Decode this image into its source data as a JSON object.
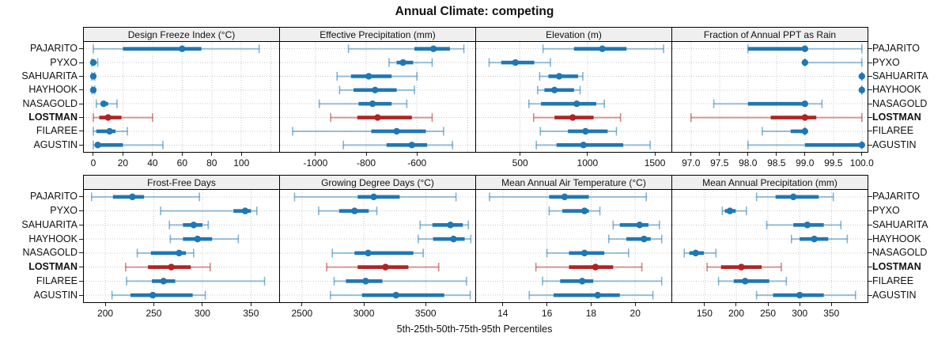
{
  "title": "Annual Climate: competing",
  "xlabel": "5th-25th-50th-75th-95th Percentiles",
  "percentile_levels": [
    5,
    25,
    50,
    75,
    95
  ],
  "highlight_station": "LOSTMAN",
  "colors": {
    "series": "#1F77B4",
    "highlight": "#B22222",
    "grid": "#C9C9C9",
    "strip_bg": "#EFEFEF",
    "panel_border": "#000000",
    "text": "#111111"
  },
  "stations": [
    {
      "name": "PAJARITO",
      "bold": false
    },
    {
      "name": "PYXO",
      "bold": false
    },
    {
      "name": "SAHUARITA",
      "bold": false
    },
    {
      "name": "HAYHOOK",
      "bold": false
    },
    {
      "name": "NASAGOLD",
      "bold": false
    },
    {
      "name": "LOSTMAN",
      "bold": true
    },
    {
      "name": "FILAREE",
      "bold": false
    },
    {
      "name": "AGUSTIN",
      "bold": false
    }
  ],
  "chart_data": {
    "type": "dotplot",
    "note": "Each row shows 5th-25th-50th-75th-95th percentile whisker/band/median-dot per station",
    "rows": [
      {
        "panels": [
          {
            "title": "Design Freeze Index (°C)",
            "xlim": [
              -6.4,
              125.5
            ],
            "ticks": [
              0,
              20,
              40,
              60,
              80,
              100
            ],
            "tick_labels": [
              "0",
              "20",
              "40",
              "60",
              "80",
              "100"
            ],
            "unlabeled_gridlines": [
              120
            ],
            "values": {
              "PAJARITO": [
                0,
                20,
                60,
                73,
                112
              ],
              "PYXO": [
                -1,
                0,
                0,
                1,
                3
              ],
              "SAHUARITA": [
                -1,
                0,
                0,
                0,
                1
              ],
              "HAYHOOK": [
                -1,
                0,
                0,
                0,
                1
              ],
              "NASAGOLD": [
                2,
                5,
                7,
                10,
                16
              ],
              "LOSTMAN": [
                0,
                4,
                10,
                19,
                40
              ],
              "FILAREE": [
                0,
                2,
                11,
                15,
                23
              ],
              "AGUSTIN": [
                0,
                2,
                3,
                20,
                47
              ]
            }
          },
          {
            "title": "Effective Precipitation (mm)",
            "xlim": [
              -1140,
              -370
            ],
            "ticks": [
              -1000,
              -800,
              -600
            ],
            "tick_labels": [
              "-1000",
              "-800",
              "-600"
            ],
            "unlabeled_gridlines": [
              -400
            ],
            "values": {
              "PAJARITO": [
                -870,
                -610,
                -535,
                -470,
                -415
              ],
              "PYXO": [
                -710,
                -680,
                -655,
                -615,
                -540
              ],
              "SAHUARITA": [
                -915,
                -860,
                -790,
                -700,
                -600
              ],
              "HAYHOOK": [
                -905,
                -850,
                -765,
                -680,
                -610
              ],
              "NASAGOLD": [
                -985,
                -830,
                -775,
                -700,
                -640
              ],
              "LOSTMAN": [
                -940,
                -835,
                -755,
                -620,
                -540
              ],
              "FILAREE": [
                -1090,
                -780,
                -680,
                -565,
                -495
              ],
              "AGUSTIN": [
                -890,
                -720,
                -620,
                -560,
                -460
              ]
            }
          },
          {
            "title": "Elevation (m)",
            "xlim": [
              173,
              1623
            ],
            "ticks": [
              500,
              1000,
              1500
            ],
            "tick_labels": [
              "500",
              "1000",
              "1500"
            ],
            "unlabeled_gridlines": [],
            "values": {
              "PAJARITO": [
                670,
                900,
                1110,
                1290,
                1565
              ],
              "PYXO": [
                270,
                360,
                465,
                605,
                725
              ],
              "SAHUARITA": [
                645,
                710,
                790,
                930,
                965
              ],
              "HAYHOOK": [
                630,
                680,
                755,
                900,
                945
              ],
              "NASAGOLD": [
                565,
                655,
                920,
                1065,
                1125
              ],
              "LOSTMAN": [
                600,
                755,
                890,
                1045,
                1245
              ],
              "FILAREE": [
                650,
                855,
                985,
                1150,
                1215
              ],
              "AGUSTIN": [
                620,
                770,
                970,
                1265,
                1465
              ]
            }
          },
          {
            "title": "Fraction of Annual PPT as Rain",
            "xlim": [
              96.67,
              100.1
            ],
            "ticks": [
              97.0,
              97.5,
              98.0,
              98.5,
              99.0,
              99.5,
              100.0
            ],
            "tick_labels": [
              "97.0",
              "97.5",
              "98.0",
              "98.5",
              "99.0",
              "99.5",
              "100.0"
            ],
            "unlabeled_gridlines": [],
            "values": {
              "PAJARITO": [
                98.0,
                98.0,
                99.0,
                99.0,
                100.0
              ],
              "PYXO": [
                99.0,
                99.0,
                99.0,
                99.0,
                100.0
              ],
              "SAHUARITA": [
                100.0,
                100.0,
                100.0,
                100.0,
                100.0
              ],
              "HAYHOOK": [
                100.0,
                100.0,
                100.0,
                100.0,
                100.0
              ],
              "NASAGOLD": [
                97.4,
                98.0,
                99.0,
                99.0,
                99.3
              ],
              "LOSTMAN": [
                97.0,
                98.4,
                99.0,
                99.2,
                100.0
              ],
              "FILAREE": [
                98.25,
                98.75,
                99.0,
                99.0,
                99.0
              ],
              "AGUSTIN": [
                98.0,
                99.0,
                100.0,
                100.0,
                100.0
              ]
            }
          }
        ]
      },
      {
        "panels": [
          {
            "title": "Frost-Free Days",
            "xlim": [
              178,
              379
            ],
            "ticks": [
              200,
              250,
              300,
              350
            ],
            "tick_labels": [
              "200",
              "250",
              "300",
              "350"
            ],
            "unlabeled_gridlines": [],
            "values": {
              "PAJARITO": [
                186,
                208,
                228,
                240,
                297
              ],
              "PYXO": [
                257,
                332,
                344,
                350,
                356
              ],
              "SAHUARITA": [
                266,
                280,
                291,
                300,
                306
              ],
              "HAYHOOK": [
                267,
                280,
                295,
                310,
                337
              ],
              "NASAGOLD": [
                233,
                247,
                276,
                283,
                291
              ],
              "LOSTMAN": [
                221,
                244,
                268,
                288,
                308
              ],
              "FILAREE": [
                222,
                248,
                260,
                272,
                364
              ],
              "AGUSTIN": [
                207,
                226,
                249,
                290,
                303
              ]
            }
          },
          {
            "title": "Growing Degree Days (°C)",
            "xlim": [
              2322,
              3901
            ],
            "ticks": [
              2500,
              3000,
              3500
            ],
            "tick_labels": [
              "2500",
              "3000",
              "3500"
            ],
            "unlabeled_gridlines": [],
            "values": {
              "PAJARITO": [
                2440,
                2950,
                3080,
                3290,
                3745
              ],
              "PYXO": [
                2635,
                2800,
                2925,
                3040,
                3105
              ],
              "SAHUARITA": [
                3455,
                3555,
                3700,
                3800,
                3845
              ],
              "HAYHOOK": [
                3440,
                3560,
                3725,
                3815,
                3865
              ],
              "NASAGOLD": [
                2745,
                2925,
                3035,
                3400,
                3480
              ],
              "LOSTMAN": [
                2700,
                2950,
                3175,
                3360,
                3605
              ],
              "FILAREE": [
                2760,
                2855,
                3015,
                3150,
                3830
              ],
              "AGUSTIN": [
                2730,
                2985,
                3260,
                3650,
                3860
              ]
            }
          },
          {
            "title": "Mean Annual Air Temperature (°C)",
            "xlim": [
              12.79,
              21.64
            ],
            "ticks": [
              14,
              16,
              18,
              20
            ],
            "tick_labels": [
              "14",
              "16",
              "18",
              "20"
            ],
            "unlabeled_gridlines": [],
            "values": {
              "PAJARITO": [
                13.4,
                16.1,
                16.8,
                17.9,
                20.5
              ],
              "PYXO": [
                16.1,
                16.7,
                17.7,
                17.9,
                18.4
              ],
              "SAHUARITA": [
                19.0,
                19.3,
                20.2,
                20.6,
                21.1
              ],
              "HAYHOOK": [
                18.8,
                19.6,
                20.4,
                20.7,
                21.2
              ],
              "NASAGOLD": [
                16.0,
                17.0,
                17.7,
                18.6,
                19.7
              ],
              "LOSTMAN": [
                15.5,
                17.0,
                18.2,
                19.0,
                20.3
              ],
              "FILAREE": [
                15.8,
                16.6,
                17.6,
                18.1,
                21.2
              ],
              "AGUSTIN": [
                15.2,
                16.3,
                18.3,
                19.3,
                20.8
              ]
            }
          },
          {
            "title": "Mean Annual Precipitation (mm)",
            "xlim": [
              99,
              407
            ],
            "ticks": [
              150,
              200,
              250,
              300,
              350
            ],
            "tick_labels": [
              "150",
              "200",
              "250",
              "300",
              "350"
            ],
            "unlabeled_gridlines": [],
            "values": {
              "PAJARITO": [
                232,
                262,
                290,
                330,
                353
              ],
              "PYXO": [
                178,
                182,
                190,
                199,
                216
              ],
              "SAHUARITA": [
                248,
                290,
                312,
                338,
                365
              ],
              "HAYHOOK": [
                287,
                300,
                323,
                345,
                375
              ],
              "NASAGOLD": [
                118,
                126,
                136,
                149,
                168
              ],
              "LOSTMAN": [
                154,
                176,
                208,
                240,
                271
              ],
              "FILAREE": [
                172,
                196,
                214,
                252,
                279
              ],
              "AGUSTIN": [
                232,
                258,
                300,
                338,
                388
              ]
            }
          }
        ]
      }
    ]
  }
}
